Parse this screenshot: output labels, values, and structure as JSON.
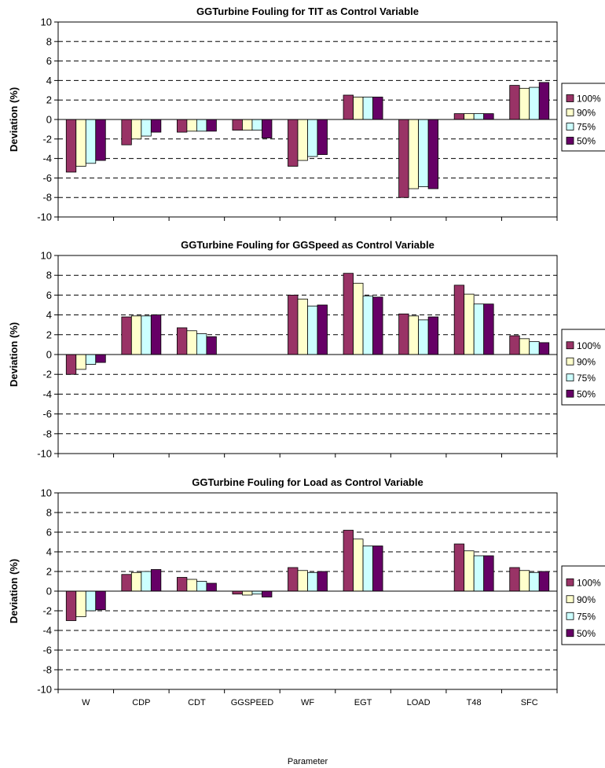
{
  "chart_data": [
    {
      "type": "bar",
      "title": "GGTurbine Fouling for TIT as Control Variable",
      "ylabel": "Deviation (%)",
      "xlabel": "",
      "ylim": [
        -10,
        10
      ],
      "yticks": [
        10,
        8,
        6,
        4,
        2,
        0,
        -2,
        -4,
        -6,
        -8,
        -10
      ],
      "grid": true,
      "legend_placement": "right",
      "categories": [
        "W",
        "CDP",
        "CDT",
        "GGSPEED",
        "WF",
        "EGT",
        "LOAD",
        "T48",
        "SFC"
      ],
      "series": [
        {
          "name": "100%",
          "color": "#993366",
          "values": [
            -5.4,
            -2.6,
            -1.3,
            -1.1,
            -4.8,
            2.5,
            -8.0,
            0.6,
            3.5
          ]
        },
        {
          "name": "90%",
          "color": "#FFFFCC",
          "values": [
            -4.8,
            -2.0,
            -1.2,
            -1.1,
            -4.2,
            2.3,
            -7.1,
            0.6,
            3.2
          ]
        },
        {
          "name": "75%",
          "color": "#CCFFFF",
          "values": [
            -4.5,
            -1.7,
            -1.2,
            -1.1,
            -3.8,
            2.3,
            -6.9,
            0.6,
            3.3
          ]
        },
        {
          "name": "50%",
          "color": "#660066",
          "values": [
            -4.2,
            -1.3,
            -1.2,
            -1.9,
            -3.6,
            2.3,
            -7.1,
            0.6,
            3.8
          ]
        }
      ]
    },
    {
      "type": "bar",
      "title": "GGTurbine Fouling for GGSpeed as Control Variable",
      "ylabel": "Deviation (%)",
      "xlabel": "",
      "ylim": [
        -10,
        10
      ],
      "yticks": [
        10,
        8,
        6,
        4,
        2,
        0,
        -2,
        -4,
        -6,
        -8,
        -10
      ],
      "grid": true,
      "legend_placement": "right",
      "categories": [
        "W",
        "CDP",
        "CDT",
        "GGSPEED",
        "WF",
        "EGT",
        "LOAD",
        "T48",
        "SFC"
      ],
      "series": [
        {
          "name": "100%",
          "color": "#993366",
          "values": [
            -2.0,
            3.8,
            2.7,
            0,
            6.0,
            8.2,
            4.1,
            7.0,
            1.9
          ]
        },
        {
          "name": "90%",
          "color": "#FFFFCC",
          "values": [
            -1.5,
            3.9,
            2.4,
            0,
            5.6,
            7.2,
            3.9,
            6.1,
            1.6
          ]
        },
        {
          "name": "75%",
          "color": "#CCFFFF",
          "values": [
            -1.0,
            3.9,
            2.1,
            0,
            4.9,
            5.9,
            3.5,
            5.1,
            1.3
          ]
        },
        {
          "name": "50%",
          "color": "#660066",
          "values": [
            -0.8,
            4.0,
            1.8,
            0,
            5.0,
            5.8,
            3.8,
            5.1,
            1.2
          ]
        }
      ]
    },
    {
      "type": "bar",
      "title": "GGTurbine Fouling for Load as Control Variable",
      "ylabel": "Deviation (%)",
      "xlabel": "Parameter",
      "ylim": [
        -10,
        10
      ],
      "yticks": [
        10,
        8,
        6,
        4,
        2,
        0,
        -2,
        -4,
        -6,
        -8,
        -10
      ],
      "grid": true,
      "legend_placement": "right",
      "categories": [
        "W",
        "CDP",
        "CDT",
        "GGSPEED",
        "WF",
        "EGT",
        "LOAD",
        "T48",
        "SFC"
      ],
      "series": [
        {
          "name": "100%",
          "color": "#993366",
          "values": [
            -3.0,
            1.7,
            1.4,
            -0.3,
            2.4,
            6.2,
            0,
            4.8,
            2.4
          ]
        },
        {
          "name": "90%",
          "color": "#FFFFCC",
          "values": [
            -2.6,
            1.9,
            1.2,
            -0.4,
            2.1,
            5.3,
            0,
            4.1,
            2.1
          ]
        },
        {
          "name": "75%",
          "color": "#CCFFFF",
          "values": [
            -2.0,
            2.0,
            1.0,
            -0.3,
            1.9,
            4.6,
            0,
            3.6,
            1.9
          ]
        },
        {
          "name": "50%",
          "color": "#660066",
          "values": [
            -1.9,
            2.2,
            0.8,
            -0.6,
            2.0,
            4.6,
            0,
            3.6,
            2.0
          ]
        }
      ]
    }
  ]
}
